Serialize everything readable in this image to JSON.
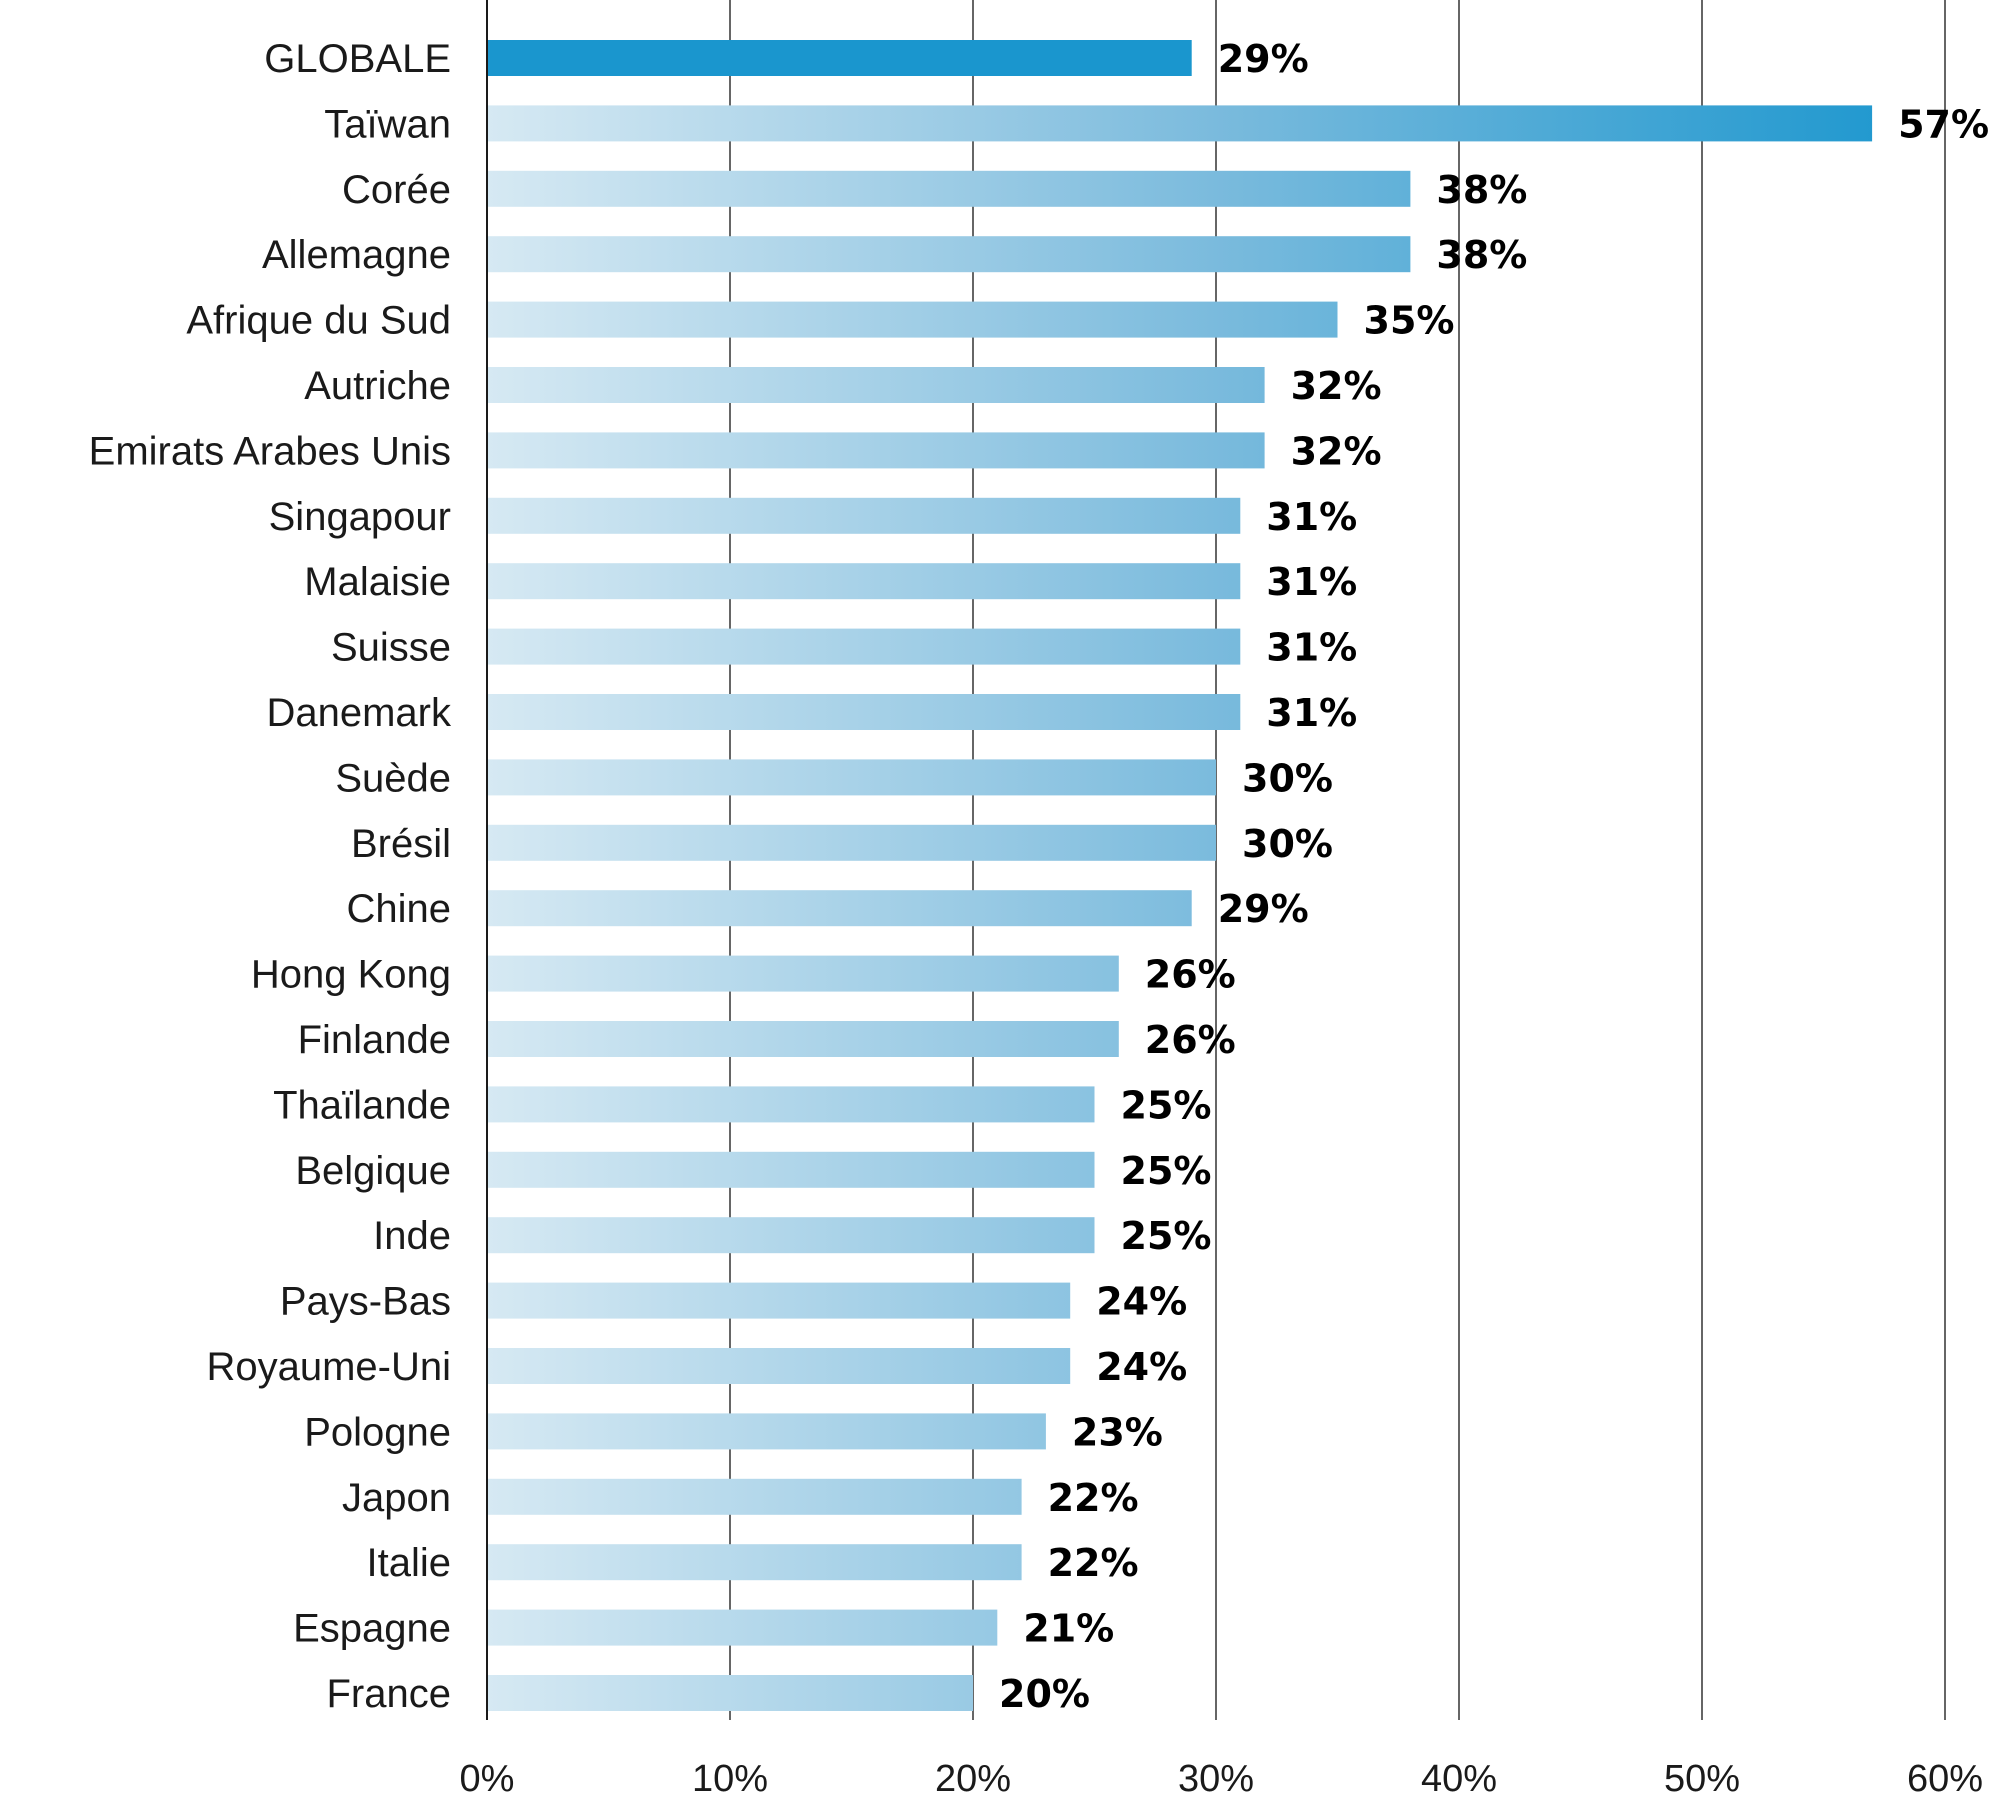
{
  "chart_data": {
    "type": "bar",
    "orientation": "horizontal",
    "categories": [
      "GLOBALE",
      "Taïwan",
      "Corée",
      "Allemagne",
      "Afrique du Sud",
      "Autriche",
      "Emirats Arabes Unis",
      "Singapour",
      "Malaisie",
      "Suisse",
      "Danemark",
      "Suède",
      "Brésil",
      "Chine",
      "Hong Kong",
      "Finlande",
      "Thaïlande",
      "Belgique",
      "Inde",
      "Pays-Bas",
      "Royaume-Uni",
      "Pologne",
      "Japon",
      "Italie",
      "Espagne",
      "France"
    ],
    "values": [
      29,
      57,
      38,
      38,
      35,
      32,
      32,
      31,
      31,
      31,
      31,
      30,
      30,
      29,
      26,
      26,
      25,
      25,
      25,
      24,
      24,
      23,
      22,
      22,
      21,
      20
    ],
    "value_labels": [
      "29%",
      "57%",
      "38%",
      "38%",
      "35%",
      "32%",
      "32%",
      "31%",
      "31%",
      "31%",
      "31%",
      "30%",
      "30%",
      "29%",
      "26%",
      "26%",
      "25%",
      "25%",
      "25%",
      "24%",
      "24%",
      "23%",
      "22%",
      "22%",
      "21%",
      "20%"
    ],
    "xlim": [
      0,
      60
    ],
    "xticks": [
      0,
      10,
      20,
      30,
      40,
      50,
      60
    ],
    "xtick_labels": [
      "0%",
      "10%",
      "20%",
      "30%",
      "40%",
      "50%",
      "60%"
    ],
    "grid": "vertical",
    "title": "",
    "xlabel": "",
    "ylabel": "",
    "colors": {
      "highlight": "#1a96ce",
      "gradient_start": "#d6e9f3",
      "gradient_end": "#1a96ce",
      "grid": "#333333",
      "axis": "#1a1a1a"
    }
  }
}
